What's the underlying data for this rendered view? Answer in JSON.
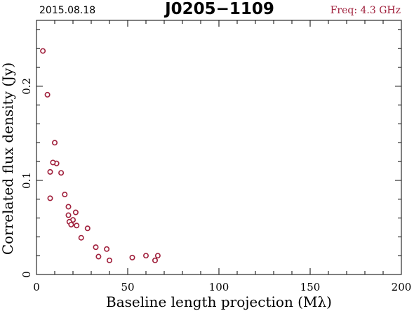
{
  "header": {
    "date": "2015.08.18",
    "source": "J0205−1109",
    "freq": "Freq: 4.3 GHz"
  },
  "chart_data": {
    "type": "scatter",
    "xlabel": "Baseline length projection (Mλ)",
    "ylabel": "Correlated flux density (Jy)",
    "xlim": [
      0,
      200
    ],
    "ylim": [
      0,
      0.27
    ],
    "x_ticks": [
      0,
      50,
      100,
      150,
      200
    ],
    "x_tick_labels": [
      "0",
      "50",
      "100",
      "150",
      "200"
    ],
    "y_ticks": [
      0,
      0.1,
      0.2
    ],
    "y_tick_labels": [
      "0",
      "0.1",
      "0.2"
    ],
    "x_minor_step": 10,
    "y_minor_step": 0.02,
    "grid": false,
    "marker_color": "#a0203c",
    "series": [
      {
        "points": [
          [
            3.5,
            0.2375
          ],
          [
            6.0,
            0.191
          ],
          [
            10.0,
            0.14
          ],
          [
            11.0,
            0.118
          ],
          [
            9.0,
            0.119
          ],
          [
            7.5,
            0.109
          ],
          [
            13.5,
            0.108
          ],
          [
            7.5,
            0.081
          ],
          [
            15.5,
            0.085
          ],
          [
            17.5,
            0.072
          ],
          [
            21.5,
            0.066
          ],
          [
            17.5,
            0.063
          ],
          [
            20.0,
            0.058
          ],
          [
            18.0,
            0.056
          ],
          [
            19.0,
            0.053
          ],
          [
            22.0,
            0.052
          ],
          [
            28.0,
            0.049
          ],
          [
            24.5,
            0.039
          ],
          [
            32.5,
            0.029
          ],
          [
            38.5,
            0.027
          ],
          [
            34.0,
            0.019
          ],
          [
            40.0,
            0.015
          ],
          [
            52.5,
            0.018
          ],
          [
            60.0,
            0.02
          ],
          [
            66.5,
            0.02
          ],
          [
            65.0,
            0.015
          ]
        ]
      }
    ]
  }
}
